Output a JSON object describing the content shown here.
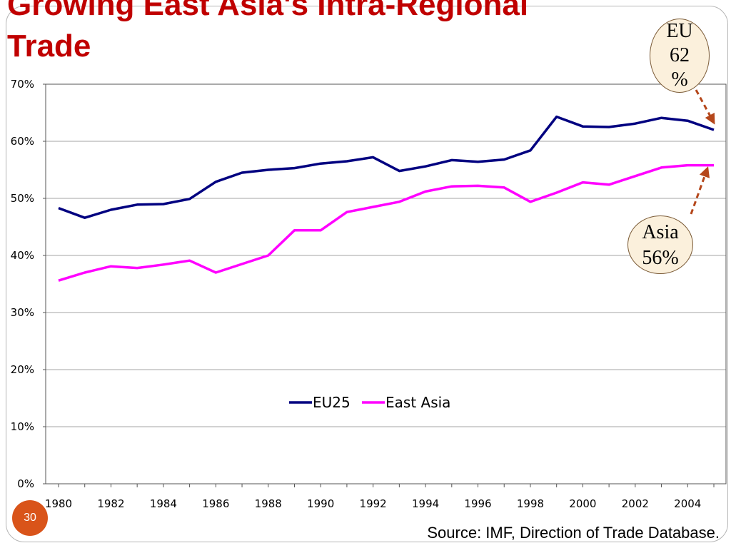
{
  "slide": {
    "title": "Growing East Asia's Intra-Regional\nTrade",
    "page_number": "30",
    "source": "Source: IMF, Direction of Trade Database."
  },
  "callouts": {
    "eu": "EU\n62\n%",
    "asia": "Asia\n56%"
  },
  "colors": {
    "eu25": "#000080",
    "east_asia": "#ff00ff",
    "title": "#c00000",
    "callout_arrow": "#b5471b"
  },
  "chart_data": {
    "type": "line",
    "x": [
      1980,
      1981,
      1982,
      1983,
      1984,
      1985,
      1986,
      1987,
      1988,
      1989,
      1990,
      1991,
      1992,
      1993,
      1994,
      1995,
      1996,
      1997,
      1998,
      1999,
      2000,
      2001,
      2002,
      2003,
      2004,
      2005
    ],
    "x_tick_labels": [
      "1980",
      "1982",
      "1984",
      "1986",
      "1988",
      "1990",
      "1992",
      "1994",
      "1996",
      "1998",
      "2000",
      "2002",
      "2004"
    ],
    "y_tick_labels": [
      "0%",
      "10%",
      "20%",
      "30%",
      "40%",
      "50%",
      "60%",
      "70%"
    ],
    "ylim": [
      0,
      70
    ],
    "grid": true,
    "legend_position": "center",
    "series": [
      {
        "name": "EU25",
        "values": [
          48.3,
          46.6,
          48.0,
          48.9,
          49.0,
          49.9,
          52.9,
          54.5,
          55.0,
          55.3,
          56.1,
          56.5,
          57.2,
          54.8,
          55.6,
          56.7,
          56.4,
          56.8,
          58.4,
          64.3,
          62.6,
          62.5,
          63.1,
          64.1,
          63.6,
          62.0
        ]
      },
      {
        "name": "East Asia",
        "values": [
          35.6,
          37.0,
          38.1,
          37.8,
          38.4,
          39.1,
          37.0,
          38.5,
          40.0,
          44.4,
          44.4,
          47.6,
          48.5,
          49.4,
          51.2,
          52.1,
          52.2,
          51.9,
          49.4,
          51.0,
          52.8,
          52.4,
          53.9,
          55.4,
          55.8,
          55.8
        ]
      }
    ]
  }
}
